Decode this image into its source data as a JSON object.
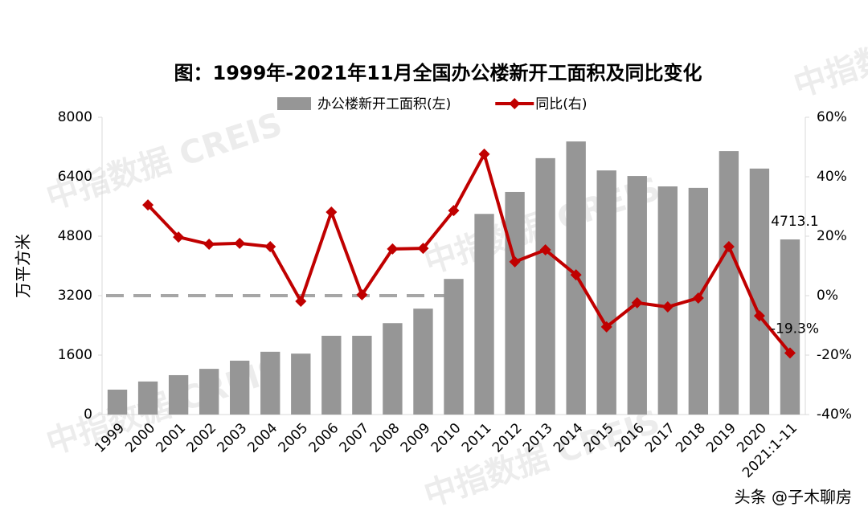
{
  "chart_data": {
    "type": "bar_line",
    "title": "图：1999年-2021年11月全国办公楼新开工面积及同比变化",
    "y_label": "万平方米",
    "watermark": "中指数据 CREIS",
    "source": "头条 @子木聊房",
    "categories": [
      "1999",
      "2000",
      "2001",
      "2002",
      "2003",
      "2004",
      "2005",
      "2006",
      "2007",
      "2008",
      "2009",
      "2010",
      "2011",
      "2012",
      "2013",
      "2014",
      "2015",
      "2016",
      "2017",
      "2018",
      "2019",
      "2020",
      "2021:1-11"
    ],
    "series": [
      {
        "name": "办公楼新开工面积(左)",
        "color": "#969696",
        "type": "bar",
        "axis": "y",
        "values": [
          670,
          890,
          1060,
          1230,
          1450,
          1690,
          1640,
          2120,
          2120,
          2460,
          2850,
          3650,
          5400,
          5990,
          6900,
          7350,
          6570,
          6420,
          6140,
          6100,
          7090,
          6620,
          4713.1
        ],
        "value_labels": [
          null,
          null,
          null,
          null,
          null,
          null,
          null,
          null,
          null,
          null,
          null,
          null,
          null,
          null,
          null,
          null,
          null,
          null,
          null,
          null,
          null,
          null,
          "4713.1"
        ]
      },
      {
        "name": "同比(右)",
        "color": "#c00000",
        "type": "line",
        "axis": "y2",
        "values": [
          null,
          30.5,
          19.7,
          17.3,
          17.6,
          16.5,
          -1.9,
          28.1,
          0.3,
          15.7,
          15.9,
          28.6,
          47.6,
          11.4,
          15.4,
          7.0,
          -10.5,
          -2.4,
          -3.8,
          -0.8,
          16.5,
          -6.8,
          -19.3
        ],
        "value_labels": [
          null,
          null,
          null,
          null,
          null,
          null,
          null,
          null,
          null,
          null,
          null,
          null,
          null,
          null,
          null,
          null,
          null,
          null,
          null,
          null,
          null,
          null,
          "-19.3%"
        ]
      }
    ],
    "ylim": [
      0,
      8000
    ],
    "yticks": [
      0,
      1600,
      3200,
      4800,
      6400,
      8000
    ],
    "y2lim": [
      -40,
      60
    ],
    "y2ticks": [
      {
        "value": -40,
        "label": "-40%"
      },
      {
        "value": -20,
        "label": "-20%"
      },
      {
        "value": 0,
        "label": "0%"
      },
      {
        "value": 20,
        "label": "20%"
      },
      {
        "value": 40,
        "label": "40%"
      },
      {
        "value": 60,
        "label": "60%"
      }
    ],
    "reference_line": {
      "axis": "y2",
      "value": 0,
      "color": "#a6a6a6",
      "dashed": true
    },
    "legend": "top"
  }
}
